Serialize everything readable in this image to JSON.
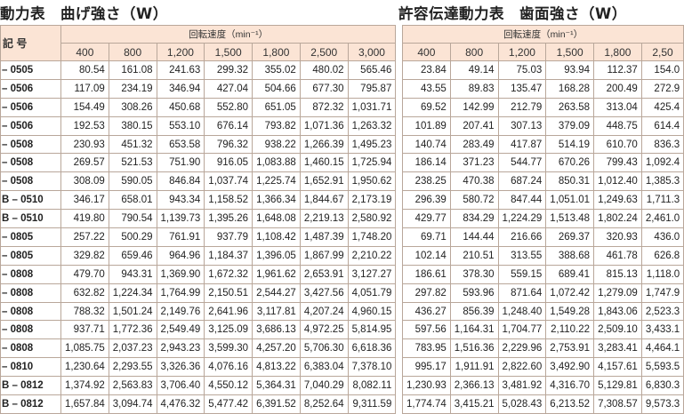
{
  "left": {
    "title": "動力表　曲げ強さ（W）",
    "model_header": "記 号",
    "speed_header": "回転速度（min⁻¹）",
    "rpms": [
      "400",
      "800",
      "1,200",
      "1,500",
      "1,800",
      "2,500",
      "3,000"
    ],
    "rows": [
      {
        "model": "– 0505",
        "values": [
          "80.54",
          "161.08",
          "241.63",
          "299.32",
          "355.02",
          "480.02",
          "565.46"
        ]
      },
      {
        "model": "– 0506",
        "values": [
          "117.09",
          "234.19",
          "346.94",
          "427.04",
          "504.66",
          "677.30",
          "795.87"
        ]
      },
      {
        "model": "– 0506",
        "values": [
          "154.49",
          "308.26",
          "450.68",
          "552.80",
          "651.05",
          "872.32",
          "1,031.71"
        ]
      },
      {
        "model": "– 0506",
        "values": [
          "192.53",
          "380.15",
          "553.10",
          "676.14",
          "793.82",
          "1,071.36",
          "1,263.32"
        ]
      },
      {
        "model": "– 0508",
        "values": [
          "230.93",
          "451.32",
          "653.58",
          "796.32",
          "938.22",
          "1,266.39",
          "1,495.23"
        ]
      },
      {
        "model": "– 0508",
        "values": [
          "269.57",
          "521.53",
          "751.90",
          "916.05",
          "1,083.88",
          "1,460.15",
          "1,725.94"
        ]
      },
      {
        "model": "– 0508",
        "values": [
          "308.09",
          "590.05",
          "846.84",
          "1,037.74",
          "1,225.74",
          "1,652.91",
          "1,950.62"
        ]
      },
      {
        "model": "B – 0510",
        "values": [
          "346.17",
          "658.01",
          "943.34",
          "1,158.52",
          "1,366.34",
          "1,844.67",
          "2,173.19"
        ]
      },
      {
        "model": "B – 0510",
        "values": [
          "419.80",
          "790.54",
          "1,139.73",
          "1,395.26",
          "1,648.08",
          "2,219.13",
          "2,580.92"
        ]
      },
      {
        "model": "– 0805",
        "values": [
          "257.22",
          "500.29",
          "761.91",
          "937.79",
          "1,108.42",
          "1,487.39",
          "1,748.20"
        ]
      },
      {
        "model": "– 0805",
        "values": [
          "329.82",
          "659.46",
          "964.96",
          "1,184.37",
          "1,396.05",
          "1,867.99",
          "2,210.22"
        ]
      },
      {
        "model": "– 0808",
        "values": [
          "479.70",
          "943.31",
          "1,369.90",
          "1,672.32",
          "1,961.62",
          "2,653.91",
          "3,127.27"
        ]
      },
      {
        "model": "– 0808",
        "values": [
          "632.82",
          "1,224.34",
          "1,764.99",
          "2,150.51",
          "2,544.27",
          "3,427.56",
          "4,051.79"
        ]
      },
      {
        "model": "– 0808",
        "values": [
          "788.32",
          "1,501.24",
          "2,149.76",
          "2,641.96",
          "3,117.81",
          "4,207.24",
          "4,960.15"
        ]
      },
      {
        "model": "– 0808",
        "values": [
          "937.71",
          "1,772.36",
          "2,549.49",
          "3,125.09",
          "3,686.13",
          "4,972.25",
          "5,814.95"
        ]
      },
      {
        "model": "– 0808",
        "values": [
          "1,085.75",
          "2,037.23",
          "2,943.23",
          "3,599.30",
          "4,257.20",
          "5,706.30",
          "6,618.36"
        ]
      },
      {
        "model": "– 0810",
        "values": [
          "1,230.64",
          "2,293.55",
          "3,326.36",
          "4,076.16",
          "4,813.22",
          "6,383.04",
          "7,378.10"
        ]
      },
      {
        "model": "B – 0812",
        "values": [
          "1,374.92",
          "2,563.83",
          "3,706.40",
          "4,550.12",
          "5,364.31",
          "7,040.29",
          "8,082.11"
        ]
      },
      {
        "model": "B – 0812",
        "values": [
          "1,657.84",
          "3,094.74",
          "4,476.32",
          "5,477.42",
          "6,391.52",
          "8,252.64",
          "9,311.59"
        ]
      }
    ]
  },
  "right": {
    "title": "許容伝達動力表　歯面強さ（W）",
    "speed_header": "回転速度（min⁻¹）",
    "rpms": [
      "400",
      "800",
      "1,200",
      "1,500",
      "1,800",
      "2,50"
    ],
    "rows": [
      {
        "values": [
          "23.84",
          "49.14",
          "75.03",
          "93.94",
          "112.37",
          "154.0"
        ]
      },
      {
        "values": [
          "43.55",
          "89.83",
          "135.47",
          "168.28",
          "200.49",
          "272.9"
        ]
      },
      {
        "values": [
          "69.52",
          "142.99",
          "212.79",
          "263.58",
          "313.04",
          "425.4"
        ]
      },
      {
        "values": [
          "101.89",
          "207.41",
          "307.13",
          "379.09",
          "448.75",
          "614.4"
        ]
      },
      {
        "values": [
          "140.74",
          "283.49",
          "417.87",
          "514.19",
          "610.70",
          "836.3"
        ]
      },
      {
        "values": [
          "186.14",
          "371.23",
          "544.77",
          "670.26",
          "799.43",
          "1,092.4"
        ]
      },
      {
        "values": [
          "238.25",
          "470.38",
          "687.24",
          "850.31",
          "1,012.40",
          "1,385.3"
        ]
      },
      {
        "values": [
          "296.39",
          "580.72",
          "847.44",
          "1,051.01",
          "1,249.63",
          "1,711.3"
        ]
      },
      {
        "values": [
          "429.77",
          "834.29",
          "1,224.29",
          "1,513.48",
          "1,802.24",
          "2,461.0"
        ]
      },
      {
        "values": [
          "69.71",
          "144.44",
          "216.66",
          "269.37",
          "320.93",
          "436.0"
        ]
      },
      {
        "values": [
          "102.14",
          "210.51",
          "313.55",
          "388.68",
          "461.78",
          "626.8"
        ]
      },
      {
        "values": [
          "186.61",
          "378.30",
          "559.15",
          "689.41",
          "815.13",
          "1,118.0"
        ]
      },
      {
        "values": [
          "297.82",
          "593.96",
          "871.64",
          "1,072.42",
          "1,279.09",
          "1,747.9"
        ]
      },
      {
        "values": [
          "436.27",
          "856.39",
          "1,248.40",
          "1,549.28",
          "1,843.06",
          "2,523.3"
        ]
      },
      {
        "values": [
          "597.56",
          "1,164.31",
          "1,704.77",
          "2,110.22",
          "2,509.10",
          "3,433.1"
        ]
      },
      {
        "values": [
          "783.95",
          "1,516.36",
          "2,229.96",
          "2,753.91",
          "3,283.41",
          "4,464.1"
        ]
      },
      {
        "values": [
          "995.17",
          "1,911.91",
          "2,822.60",
          "3,492.90",
          "4,157.61",
          "5,593.5"
        ]
      },
      {
        "values": [
          "1,230.93",
          "2,366.13",
          "3,481.92",
          "4,316.70",
          "5,129.81",
          "6,830.3"
        ]
      },
      {
        "values": [
          "1,774.74",
          "3,415.21",
          "5,028.43",
          "6,213.52",
          "7,308.57",
          "9,573.3"
        ]
      }
    ]
  }
}
